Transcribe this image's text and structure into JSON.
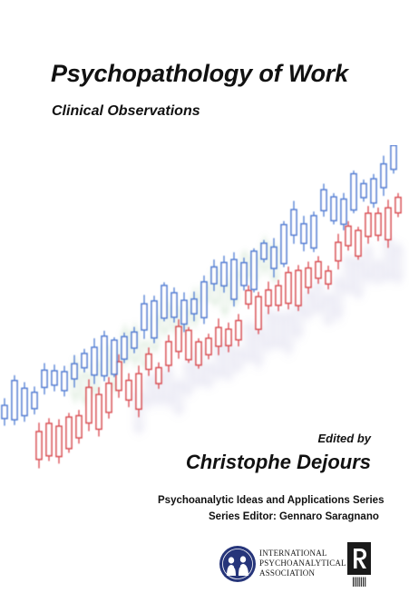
{
  "book": {
    "title": "Psychopathology of Work",
    "subtitle": "Clinical Observations",
    "edited_by": "Edited by",
    "editor": "Christophe Dejours",
    "series": "Psychoanalytic Ideas and Applications Series",
    "series_editor": "Series Editor: Gennaro Saragnano"
  },
  "publisher": {
    "ipa_lines": [
      "INTERNATIONAL",
      "PSYCHOANALYTICAL",
      "ASSOCIATION"
    ],
    "routledge_logo": "Routledge"
  },
  "colors": {
    "blue": "#3b6fd0",
    "red": "#d6343b",
    "green": "#8cc48c",
    "lavender": "#8b86c8",
    "ipa_blue": "#26357a"
  },
  "icons": {
    "seal": "ipa-seal-icon",
    "publisher": "routledge-logo-icon"
  }
}
